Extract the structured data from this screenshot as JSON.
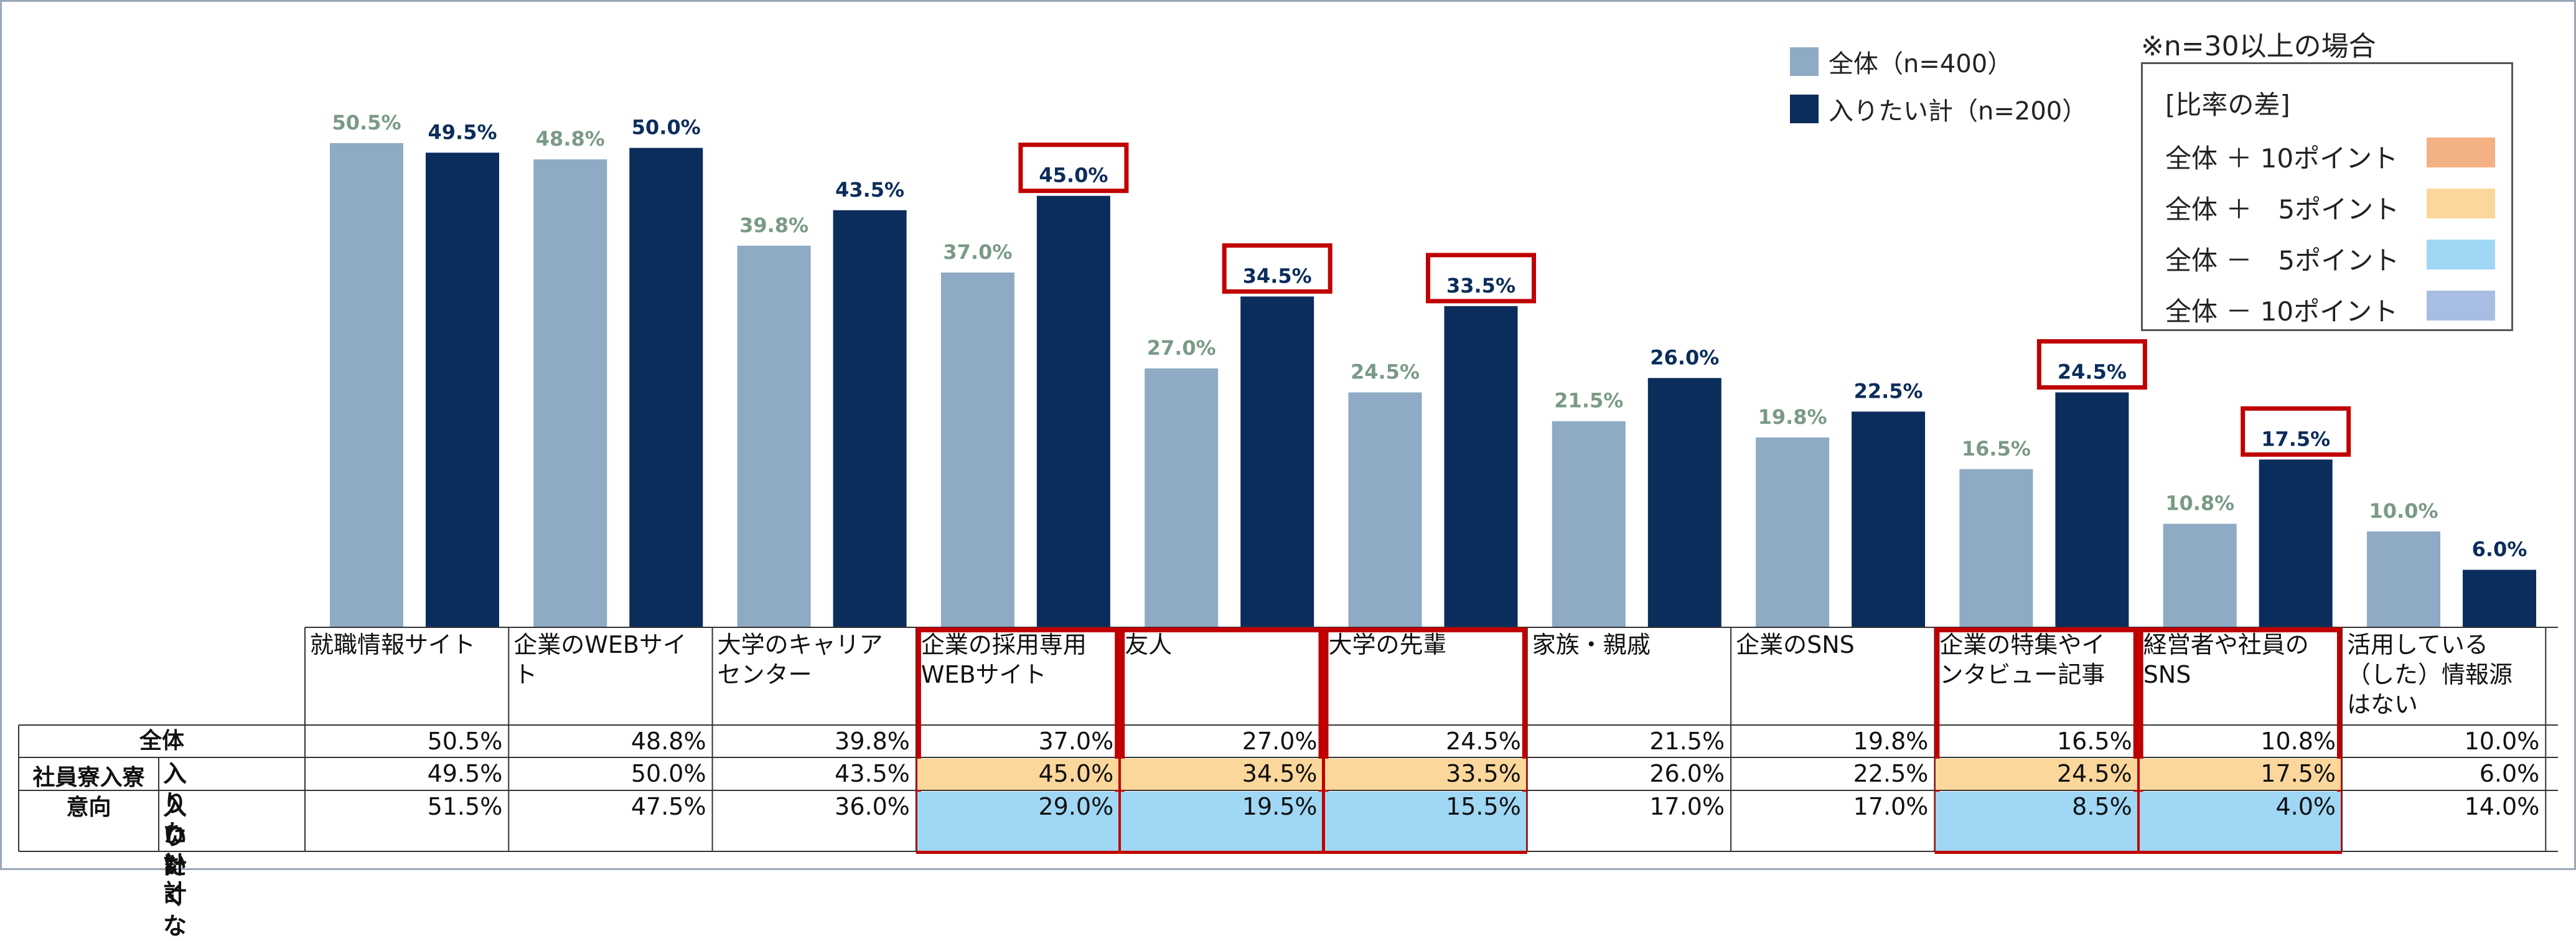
{
  "chart_data": {
    "type": "bar",
    "categories": [
      "就職情報サイト",
      "企業のWEBサイト",
      "大学のキャリアセンター",
      "企業の採用専用WEBサイト",
      "友人",
      "大学の先輩",
      "家族・親戚",
      "企業のSNS",
      "企業の特集やインタビュー記事",
      "経営者や社員のSNS",
      "活用している（した）情報源はない"
    ],
    "category_lines": [
      [
        "就職情報サイト"
      ],
      [
        "企業のWEBサイ",
        "ト"
      ],
      [
        "大学のキャリア",
        "センター"
      ],
      [
        "企業の採用専用",
        "WEBサイト"
      ],
      [
        "友人"
      ],
      [
        "大学の先輩"
      ],
      [
        "家族・親戚"
      ],
      [
        "企業のSNS"
      ],
      [
        "企業の特集やイ",
        "ンタビュー記事"
      ],
      [
        "経営者や社員の",
        "SNS"
      ],
      [
        "活用している",
        "（した）情報源",
        "はない"
      ]
    ],
    "series": [
      {
        "name": "全体（n=400）",
        "values": [
          50.5,
          48.8,
          39.8,
          37.0,
          27.0,
          24.5,
          21.5,
          19.8,
          16.5,
          10.8,
          10.0
        ],
        "color": "#8eaac4",
        "label_color": "#7a9a86"
      },
      {
        "name": "入りたい計（n=200）",
        "values": [
          49.5,
          50.0,
          43.5,
          45.0,
          34.5,
          33.5,
          26.0,
          22.5,
          24.5,
          17.5,
          6.0
        ],
        "color": "#0b2d5b",
        "label_color": "#0b2d5b"
      }
    ],
    "highlighted_labels": [
      3,
      4,
      5,
      8,
      9
    ],
    "ylim": [
      0,
      60
    ],
    "grid": false,
    "legend_position": "top-right"
  },
  "legend": {
    "items": [
      {
        "label": "全体（n=400）",
        "color": "#8eaac4"
      },
      {
        "label": "入りたい計（n=200）",
        "color": "#0b2d5b"
      }
    ]
  },
  "note": "※n=30以上の場合",
  "ratio_legend": {
    "title": "[比率の差]",
    "items": [
      {
        "label": "全体 ＋ 10ポイント",
        "color": "#f4b183"
      },
      {
        "label": "全体 ＋　5ポイント",
        "color": "#fcd79c"
      },
      {
        "label": "全体 －　5ポイント",
        "color": "#9fd7f5"
      },
      {
        "label": "全体 － 10ポイント",
        "color": "#a8bde3"
      }
    ]
  },
  "table": {
    "group_label": [
      "社員寮入寮",
      "意向"
    ],
    "rows": [
      {
        "label": [
          "全体"
        ],
        "values": [
          "50.5%",
          "48.8%",
          "39.8%",
          "37.0%",
          "27.0%",
          "24.5%",
          "21.5%",
          "19.8%",
          "16.5%",
          "10.8%",
          "10.0%"
        ],
        "fills": [
          null,
          null,
          null,
          null,
          null,
          null,
          null,
          null,
          null,
          null,
          null
        ]
      },
      {
        "label": [
          "入りたい計"
        ],
        "values": [
          "49.5%",
          "50.0%",
          "43.5%",
          "45.0%",
          "34.5%",
          "33.5%",
          "26.0%",
          "22.5%",
          "24.5%",
          "17.5%",
          "6.0%"
        ],
        "fills": [
          null,
          null,
          null,
          "#fcd79c",
          "#fcd79c",
          "#fcd79c",
          null,
          null,
          "#fcd79c",
          "#fcd79c",
          null
        ]
      },
      {
        "label": [
          "入りたくな",
          "い計"
        ],
        "values": [
          "51.5%",
          "47.5%",
          "36.0%",
          "29.0%",
          "19.5%",
          "15.5%",
          "17.0%",
          "17.0%",
          "8.5%",
          "4.0%",
          "14.0%"
        ],
        "fills": [
          null,
          null,
          null,
          "#9fd7f5",
          "#9fd7f5",
          "#9fd7f5",
          null,
          null,
          "#9fd7f5",
          "#9fd7f5",
          null
        ]
      }
    ],
    "highlighted_columns": [
      3,
      4,
      5,
      8,
      9
    ]
  },
  "colors": {
    "highlight_border": "#c00000",
    "grid_line": "#333333"
  }
}
